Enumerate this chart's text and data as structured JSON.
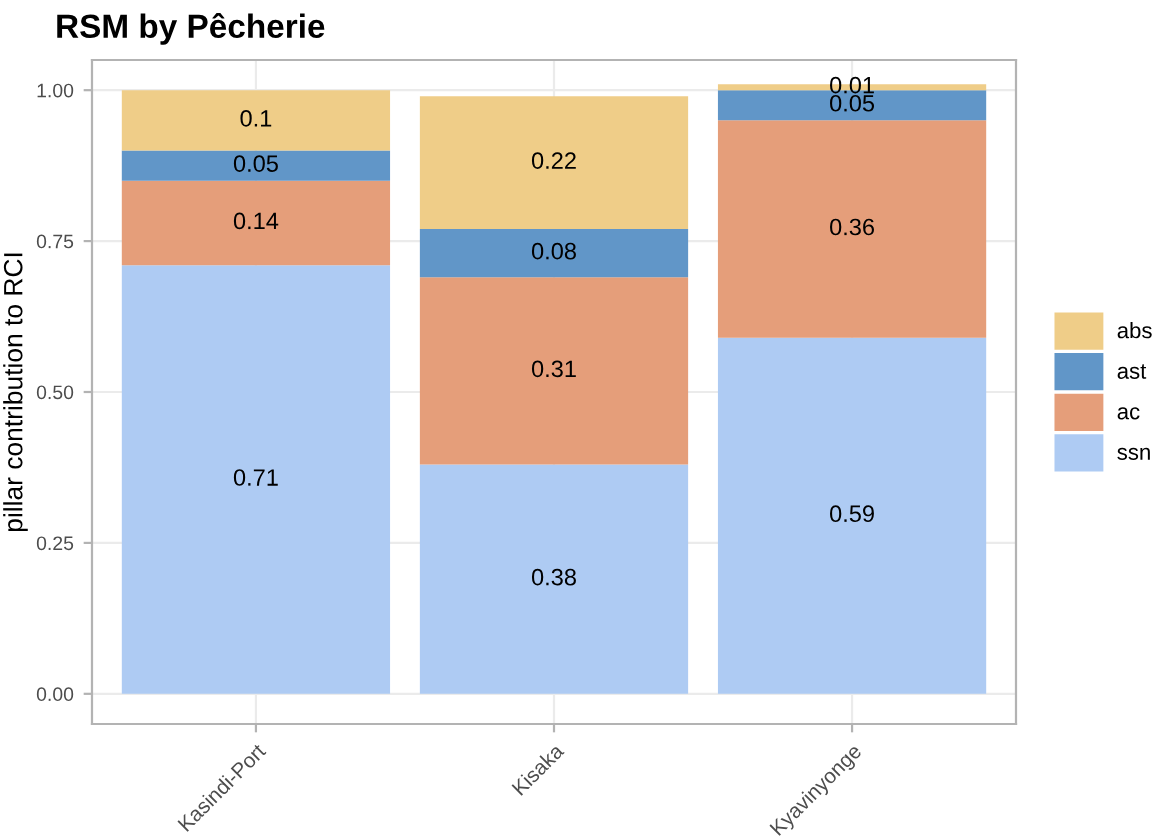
{
  "chart_data": {
    "type": "bar",
    "title": "RSM by Pêcherie",
    "ylabel": "pillar contribution to RCI",
    "categories": [
      "Kasindi-Port",
      "Kisaka",
      "Kyavinyonge"
    ],
    "stacked": true,
    "series": [
      {
        "name": "ssn",
        "color": "#aecbf3",
        "values": [
          0.71,
          0.38,
          0.59
        ]
      },
      {
        "name": "ac",
        "color": "#e59e7a",
        "values": [
          0.14,
          0.31,
          0.36
        ]
      },
      {
        "name": "ast",
        "color": "#6196c8",
        "values": [
          0.05,
          0.08,
          0.05
        ]
      },
      {
        "name": "abs",
        "color": "#efcd88",
        "values": [
          0.1,
          0.22,
          0.01
        ]
      }
    ],
    "ylim": [
      -0.05,
      1.05
    ],
    "yticks": [
      {
        "value": 0,
        "label": "0.00"
      },
      {
        "value": 0.25,
        "label": "0.25"
      },
      {
        "value": 0.5,
        "label": "0.50"
      },
      {
        "value": 0.75,
        "label": "0.75"
      },
      {
        "value": 1,
        "label": "1.00"
      }
    ],
    "grid": true,
    "legend": "right",
    "data_labels": true
  }
}
